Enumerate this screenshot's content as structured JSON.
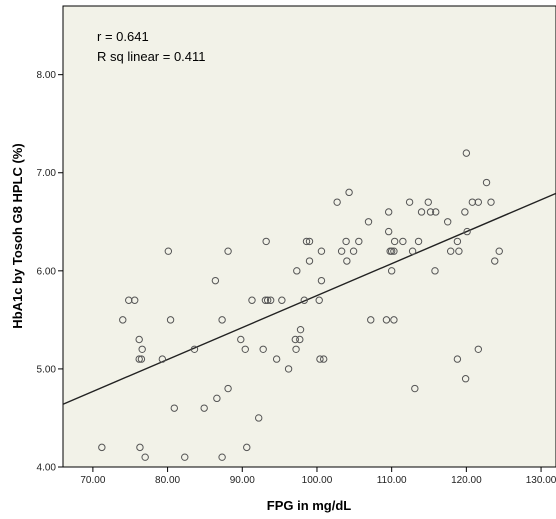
{
  "chart_data": {
    "type": "scatter",
    "title": "",
    "xlabel": "FPG in mg/dL",
    "ylabel": "HbA1c by Tosoh G8 HPLC (%)",
    "xlim": [
      66,
      132
    ],
    "ylim": [
      4.0,
      8.7
    ],
    "x_ticks": [
      70,
      80,
      90,
      100,
      110,
      120,
      130
    ],
    "x_tick_labels": [
      "70.00",
      "80.00",
      "90.00",
      "100.00",
      "110.00",
      "120.00",
      "130.00"
    ],
    "y_ticks": [
      4,
      5,
      6,
      7,
      8
    ],
    "y_tick_labels": [
      "4.00",
      "5.00",
      "6.00",
      "7.00",
      "8.00"
    ],
    "grid": false,
    "background_color": "#f2f2e8",
    "marker_color": "#555555",
    "line_color": "#222222",
    "annotations": [
      "r = 0.641",
      "R sq linear = 0.411"
    ],
    "fit_line": {
      "x": [
        66,
        132
      ],
      "y": [
        4.64,
        6.79
      ]
    },
    "series": [
      {
        "points": [
          [
            71.2,
            4.2
          ],
          [
            74.0,
            5.5
          ],
          [
            74.8,
            5.7
          ],
          [
            75.6,
            5.7
          ],
          [
            76.2,
            5.3
          ],
          [
            76.2,
            5.1
          ],
          [
            76.5,
            5.1
          ],
          [
            76.6,
            5.2
          ],
          [
            76.3,
            4.2
          ],
          [
            77.0,
            4.1
          ],
          [
            79.3,
            5.1
          ],
          [
            80.1,
            6.2
          ],
          [
            80.4,
            5.5
          ],
          [
            80.9,
            4.6
          ],
          [
            82.3,
            4.1
          ],
          [
            83.6,
            5.2
          ],
          [
            84.9,
            4.6
          ],
          [
            86.4,
            5.9
          ],
          [
            86.6,
            4.7
          ],
          [
            87.3,
            5.5
          ],
          [
            87.3,
            4.1
          ],
          [
            88.1,
            6.2
          ],
          [
            88.1,
            4.8
          ],
          [
            89.8,
            5.3
          ],
          [
            90.4,
            5.2
          ],
          [
            90.6,
            4.2
          ],
          [
            91.3,
            5.7
          ],
          [
            92.2,
            4.5
          ],
          [
            92.8,
            5.2
          ],
          [
            93.1,
            5.7
          ],
          [
            93.2,
            6.3
          ],
          [
            93.4,
            5.7
          ],
          [
            93.8,
            5.7
          ],
          [
            94.6,
            5.1
          ],
          [
            95.3,
            5.7
          ],
          [
            96.2,
            5.0
          ],
          [
            97.1,
            5.3
          ],
          [
            97.2,
            5.2
          ],
          [
            97.3,
            6.0
          ],
          [
            97.7,
            5.3
          ],
          [
            97.8,
            5.4
          ],
          [
            98.3,
            5.7
          ],
          [
            98.6,
            6.3
          ],
          [
            99.0,
            6.3
          ],
          [
            99.0,
            6.1
          ],
          [
            100.3,
            5.7
          ],
          [
            100.4,
            5.1
          ],
          [
            100.6,
            6.2
          ],
          [
            100.6,
            5.9
          ],
          [
            100.9,
            5.1
          ],
          [
            102.7,
            6.7
          ],
          [
            103.3,
            6.2
          ],
          [
            103.9,
            6.3
          ],
          [
            104.0,
            6.1
          ],
          [
            104.3,
            6.8
          ],
          [
            104.9,
            6.2
          ],
          [
            105.6,
            6.3
          ],
          [
            106.9,
            6.5
          ],
          [
            107.2,
            5.5
          ],
          [
            109.3,
            5.5
          ],
          [
            109.6,
            6.6
          ],
          [
            109.6,
            6.4
          ],
          [
            109.8,
            6.2
          ],
          [
            110.0,
            6.2
          ],
          [
            110.0,
            6.0
          ],
          [
            110.3,
            6.2
          ],
          [
            110.3,
            5.5
          ],
          [
            110.4,
            6.3
          ],
          [
            111.5,
            6.3
          ],
          [
            112.4,
            6.7
          ],
          [
            112.8,
            6.2
          ],
          [
            113.1,
            4.8
          ],
          [
            113.6,
            6.3
          ],
          [
            114.0,
            6.6
          ],
          [
            114.9,
            6.7
          ],
          [
            115.2,
            6.6
          ],
          [
            115.8,
            6.0
          ],
          [
            115.9,
            6.6
          ],
          [
            117.5,
            6.5
          ],
          [
            117.9,
            6.2
          ],
          [
            118.8,
            6.3
          ],
          [
            118.8,
            5.1
          ],
          [
            119.0,
            6.2
          ],
          [
            119.8,
            6.6
          ],
          [
            120.0,
            7.2
          ],
          [
            120.1,
            6.4
          ],
          [
            119.9,
            4.9
          ],
          [
            120.8,
            6.7
          ],
          [
            121.6,
            5.2
          ],
          [
            121.6,
            6.7
          ],
          [
            122.7,
            6.9
          ],
          [
            123.3,
            6.7
          ],
          [
            123.8,
            6.1
          ],
          [
            124.4,
            6.2
          ]
        ]
      }
    ]
  }
}
